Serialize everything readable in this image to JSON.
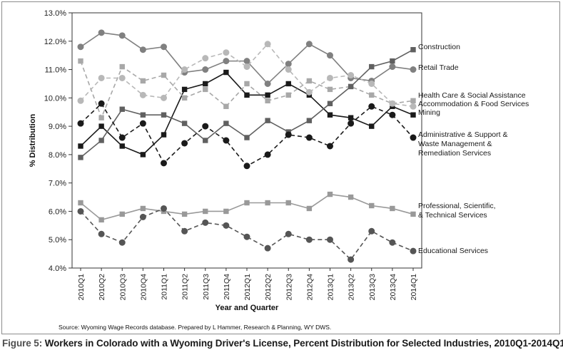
{
  "caption": {
    "figure_label": "Figure 5:",
    "text": "Workers in Colorado with a Wyoming Driver's License, Percent Distribution for Selected Industries, 2010Q1-2014Q1"
  },
  "source": "Source: Wyoming Wage Records database. Prepared by L Hammer, Research & Planning, WY DWS.",
  "chart_data": {
    "type": "line",
    "title": "",
    "xlabel": "Year and Quarter",
    "ylabel": "% Distribution",
    "ylim": [
      4.0,
      13.0
    ],
    "yticks": [
      "4.0%",
      "5.0%",
      "6.0%",
      "7.0%",
      "8.0%",
      "9.0%",
      "10.0%",
      "11.0%",
      "12.0%",
      "13.0%"
    ],
    "grid": false,
    "legend": "right-side labels",
    "categories": [
      "2010Q1",
      "2010Q2",
      "2010Q3",
      "2010Q4",
      "2011Q1",
      "2011Q2",
      "2011Q3",
      "2011Q4",
      "2012Q1",
      "2012Q2",
      "2012Q3",
      "2012Q4",
      "2013Q1",
      "2013Q2",
      "2013Q3",
      "2013Q4",
      "2014Q1"
    ],
    "series": [
      {
        "name": "Construction",
        "label_lines": [
          "Construction"
        ],
        "color": "#1a1a1a",
        "marker": "square",
        "dashed": false,
        "values": [
          8.3,
          9.0,
          8.3,
          8.0,
          8.7,
          10.3,
          10.5,
          10.9,
          10.1,
          10.1,
          10.5,
          10.1,
          9.4,
          9.3,
          9.0,
          9.7,
          9.4
        ]
      },
      {
        "name": "Retail Trade",
        "label_lines": [
          "Retail Trade"
        ],
        "color": "#808080",
        "marker": "circle",
        "dashed": false,
        "values": [
          11.8,
          12.3,
          12.2,
          11.7,
          11.8,
          10.9,
          11.0,
          11.3,
          11.3,
          10.5,
          11.2,
          11.9,
          11.5,
          10.7,
          10.6,
          11.1,
          11.0
        ]
      },
      {
        "name": "Health Care & Social Assistance",
        "label_lines": [
          "Health Care & Social Assistance"
        ],
        "color": "#a8a8a8",
        "marker": "square",
        "dashed": true,
        "values": [
          11.3,
          9.3,
          11.1,
          10.6,
          10.8,
          10.0,
          10.3,
          9.7,
          10.5,
          9.9,
          10.1,
          10.6,
          10.3,
          10.4,
          10.1,
          9.8,
          9.9
        ]
      },
      {
        "name": "Accommodation & Food Services",
        "label_lines": [
          "Accommodation & Food Services"
        ],
        "color": "#b8b8b8",
        "marker": "circle",
        "dashed": true,
        "values": [
          9.9,
          10.7,
          10.7,
          10.1,
          10.0,
          11.0,
          11.4,
          11.6,
          11.1,
          11.9,
          11.0,
          10.2,
          10.7,
          10.8,
          10.5,
          9.8,
          9.7
        ]
      },
      {
        "name": "Mining",
        "label_lines": [
          "Mining"
        ],
        "color": "#606060",
        "marker": "square",
        "dashed": false,
        "values": [
          7.9,
          8.5,
          9.6,
          9.4,
          9.4,
          9.1,
          8.5,
          9.1,
          8.6,
          9.2,
          8.8,
          9.2,
          9.8,
          10.4,
          11.1,
          11.3,
          11.7
        ]
      },
      {
        "name": "Administrative & Support & Waste Management & Remediation Services",
        "label_lines": [
          "Administrative & Support &",
          "Waste Management &",
          "Remediation Services"
        ],
        "color": "#1a1a1a",
        "marker": "circle",
        "dashed": true,
        "values": [
          9.1,
          9.8,
          8.6,
          9.1,
          7.7,
          8.4,
          9.0,
          8.5,
          7.6,
          8.0,
          8.7,
          8.6,
          8.3,
          9.1,
          9.7,
          9.4,
          8.6
        ]
      },
      {
        "name": "Professional, Scientific, & Technical Services",
        "label_lines": [
          "Professional, Scientific,",
          "& Technical Services"
        ],
        "color": "#999999",
        "marker": "square",
        "dashed": false,
        "values": [
          6.3,
          5.7,
          5.9,
          6.1,
          6.0,
          5.9,
          6.0,
          6.0,
          6.3,
          6.3,
          6.3,
          6.1,
          6.6,
          6.5,
          6.2,
          6.1,
          5.9
        ]
      },
      {
        "name": "Educational Services",
        "label_lines": [
          "Educational Services"
        ],
        "color": "#555555",
        "marker": "circle",
        "dashed": true,
        "values": [
          6.0,
          5.2,
          4.9,
          5.8,
          6.1,
          5.3,
          5.6,
          5.5,
          5.1,
          4.7,
          5.2,
          5.0,
          5.0,
          4.3,
          5.3,
          4.9,
          4.6
        ]
      }
    ]
  }
}
